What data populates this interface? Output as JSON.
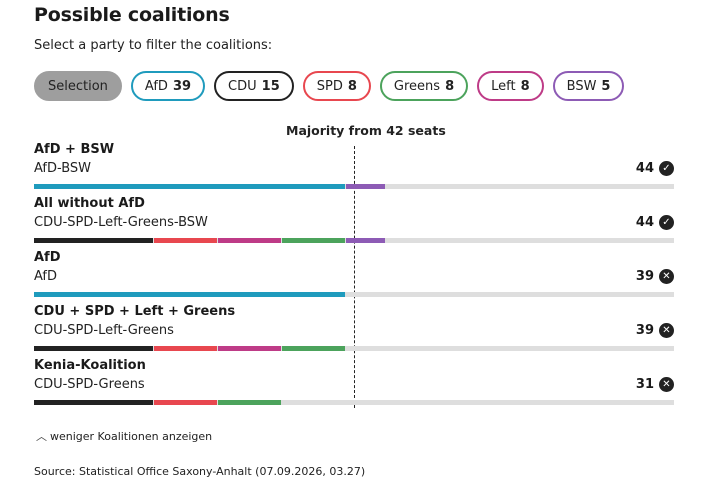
{
  "header": {
    "title": "Possible coalitions",
    "subtitle": "Select a party to filter the coalitions:"
  },
  "filters": {
    "selection_label": "Selection",
    "parties": [
      {
        "name": "AfD",
        "seats": "39",
        "color": "#1f9bbd"
      },
      {
        "name": "CDU",
        "seats": "15",
        "color": "#222222"
      },
      {
        "name": "SPD",
        "seats": "8",
        "color": "#e8474f"
      },
      {
        "name": "Greens",
        "seats": "8",
        "color": "#4ca35c"
      },
      {
        "name": "Left",
        "seats": "8",
        "color": "#be3b87"
      },
      {
        "name": "BSW",
        "seats": "5",
        "color": "#8d5bb5"
      }
    ]
  },
  "chart": {
    "majority_label": "Majority from 42 seats",
    "majority_seats": 42,
    "total_seats": 83
  },
  "coalitions": [
    {
      "title": "AfD + BSW",
      "parties_label": "AfD-BSW",
      "seats": "44",
      "status": "check",
      "segments": [
        {
          "party": "AfD",
          "seats": 39,
          "color": "#1f9bbd"
        },
        {
          "party": "BSW",
          "seats": 5,
          "color": "#8d5bb5"
        }
      ]
    },
    {
      "title": "All without AfD",
      "parties_label": "CDU-SPD-Left-Greens-BSW",
      "seats": "44",
      "status": "check",
      "segments": [
        {
          "party": "CDU",
          "seats": 15,
          "color": "#222222"
        },
        {
          "party": "SPD",
          "seats": 8,
          "color": "#e8474f"
        },
        {
          "party": "Left",
          "seats": 8,
          "color": "#be3b87"
        },
        {
          "party": "Greens",
          "seats": 8,
          "color": "#4ca35c"
        },
        {
          "party": "BSW",
          "seats": 5,
          "color": "#8d5bb5"
        }
      ]
    },
    {
      "title": "AfD",
      "parties_label": "AfD",
      "seats": "39",
      "status": "cross",
      "segments": [
        {
          "party": "AfD",
          "seats": 39,
          "color": "#1f9bbd"
        }
      ]
    },
    {
      "title": "CDU + SPD + Left + Greens",
      "parties_label": "CDU-SPD-Left-Greens",
      "seats": "39",
      "status": "cross",
      "segments": [
        {
          "party": "CDU",
          "seats": 15,
          "color": "#222222"
        },
        {
          "party": "SPD",
          "seats": 8,
          "color": "#e8474f"
        },
        {
          "party": "Left",
          "seats": 8,
          "color": "#be3b87"
        },
        {
          "party": "Greens",
          "seats": 8,
          "color": "#4ca35c"
        }
      ]
    },
    {
      "title": "Kenia-Koalition",
      "parties_label": "CDU-SPD-Greens",
      "seats": "31",
      "status": "cross",
      "segments": [
        {
          "party": "CDU",
          "seats": 15,
          "color": "#222222"
        },
        {
          "party": "SPD",
          "seats": 8,
          "color": "#e8474f"
        },
        {
          "party": "Greens",
          "seats": 8,
          "color": "#4ca35c"
        }
      ]
    }
  ],
  "icons": {
    "check": "checkmark-icon",
    "cross": "cross-icon",
    "toggle": "chevron-up-icon"
  },
  "footer": {
    "toggle_label": "weniger Koalitionen anzeigen",
    "source": "Source: Statistical Office Saxony-Anhalt (07.09.2026, 03.27)"
  }
}
